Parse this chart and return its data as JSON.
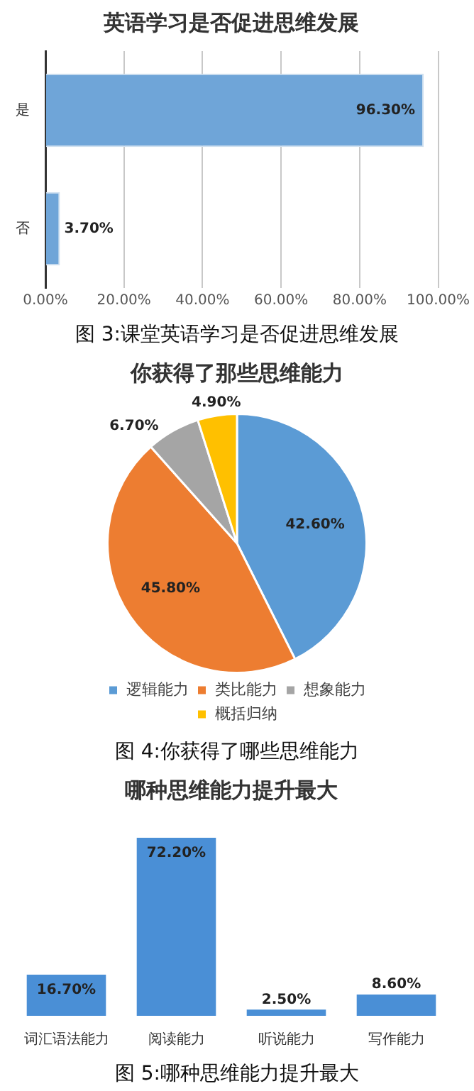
{
  "chart_data": [
    {
      "type": "bar",
      "orientation": "horizontal",
      "title": "英语学习是否促进思维发展",
      "categories": [
        "是",
        "否"
      ],
      "values": [
        96.3,
        3.7
      ],
      "color": "#6fa5d8",
      "value_labels": [
        "96.30%",
        "3.70%"
      ],
      "xlim": [
        0,
        100
      ],
      "xticks": [
        {
          "value": 0,
          "label": "0.00%"
        },
        {
          "value": 20,
          "label": "20.00%"
        },
        {
          "value": 40,
          "label": "40.00%"
        },
        {
          "value": 60,
          "label": "60.00%"
        },
        {
          "value": 80,
          "label": "80.00%"
        },
        {
          "value": 100,
          "label": "100.00%"
        }
      ],
      "grid": "x",
      "annotations": [
        "图 3:课堂英语学习是否促进思维发展"
      ]
    },
    {
      "type": "pie",
      "title": "你获得了那些思维能力",
      "categories": [
        "逻辑能力",
        "类比能力",
        "想象能力",
        "概括归纳"
      ],
      "values": [
        42.6,
        45.8,
        6.7,
        4.9
      ],
      "colors": [
        "#5b9bd5",
        "#ed7d31",
        "#a5a5a5",
        "#ffc000"
      ],
      "value_labels": [
        "42.60%",
        "45.80%",
        "6.70%",
        "4.90%"
      ],
      "legend": "bottom",
      "annotations": [
        "图 4:你获得了哪些思维能力"
      ]
    },
    {
      "type": "bar",
      "title": "哪种思维能力提升最大",
      "categories": [
        "词汇语法能力",
        "阅读能力",
        "听说能力",
        "写作能力"
      ],
      "values": [
        16.7,
        72.2,
        2.5,
        8.6
      ],
      "color": "#4a8fd6",
      "value_labels": [
        "16.70%",
        "72.20%",
        "2.50%",
        "8.60%"
      ],
      "annotations": [
        "图 5:哪种思维能力提升最大"
      ]
    }
  ]
}
